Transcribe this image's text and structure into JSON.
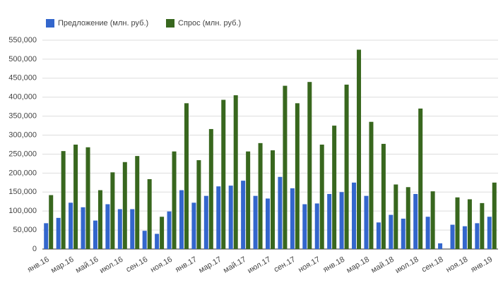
{
  "chart_data": {
    "type": "bar",
    "categories": [
      "янв.16",
      null,
      "мар.16",
      null,
      "май.16",
      null,
      "июл.16",
      null,
      "сен.16",
      null,
      "ноя.16",
      null,
      "янв.17",
      null,
      "мар.17",
      null,
      "май.17",
      null,
      "июл.17",
      null,
      "сен.17",
      null,
      "ноя.17",
      null,
      "янв.18",
      null,
      "мар.18",
      null,
      "май.18",
      null,
      "июл.18",
      null,
      "сен.18",
      null,
      "ноя.18",
      null,
      "янв.19"
    ],
    "series": [
      {
        "name": "Предложение (млн. руб.)",
        "color": "#3366cc",
        "values": [
          68000,
          82000,
          122000,
          110000,
          75000,
          118000,
          105000,
          105000,
          48000,
          40000,
          99000,
          155000,
          122000,
          140000,
          165000,
          167000,
          180000,
          140000,
          133000,
          190000,
          160000,
          118000,
          120000,
          145000,
          150000,
          175000,
          140000,
          70000,
          90000,
          80000,
          145000,
          85000,
          15000,
          64000,
          60000,
          68000,
          85000
        ]
      },
      {
        "name": "Спрос (млн. руб.)",
        "color": "#38671e",
        "values": [
          142000,
          258000,
          275000,
          268000,
          155000,
          202000,
          229000,
          245000,
          184000,
          85000,
          257000,
          384000,
          234000,
          316000,
          393000,
          405000,
          257000,
          279000,
          260000,
          430000,
          384000,
          440000,
          275000,
          325000,
          433000,
          525000,
          335000,
          277000,
          170000,
          163000,
          370000,
          152000,
          null,
          136000,
          131000,
          121000,
          175000
        ]
      }
    ],
    "ylim": [
      0,
      550000
    ],
    "yticks": [
      0,
      {
        "value": 50000,
        "label": "50,000"
      },
      {
        "value": 100000,
        "label": "100,000"
      },
      {
        "value": 150000,
        "label": "150,000"
      },
      {
        "value": 200000,
        "label": "200,000"
      },
      {
        "value": 250000,
        "label": "250,000"
      },
      {
        "value": 300000,
        "label": "300,000"
      },
      {
        "value": 350000,
        "label": "350,000"
      },
      {
        "value": 400000,
        "label": "400,000"
      },
      {
        "value": 450000,
        "label": "450,000"
      },
      {
        "value": 500000,
        "label": "500,000"
      },
      {
        "value": 550000,
        "label": "550,000"
      }
    ],
    "grid": true,
    "legend": "top"
  }
}
